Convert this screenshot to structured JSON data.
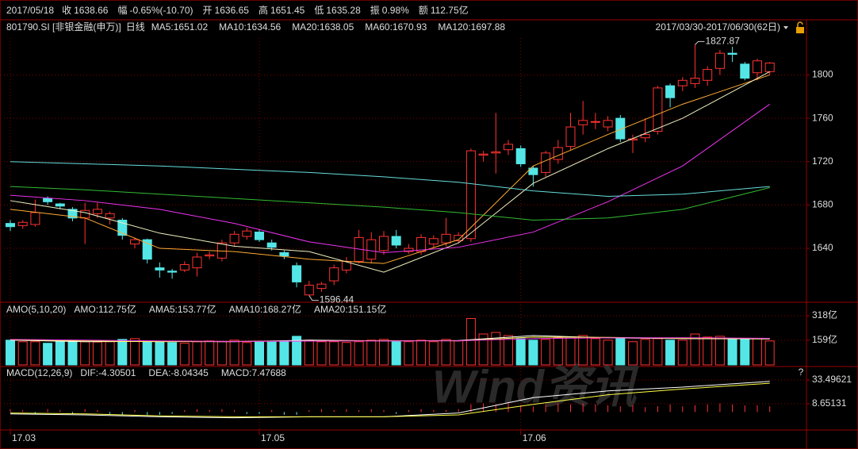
{
  "header": {
    "date": "2017/05/18",
    "items": [
      {
        "label": "收",
        "value": "1638.66",
        "color": "#00e000"
      },
      {
        "label": "幅",
        "value": "-0.65%(-10.70)",
        "color": "#00e000"
      },
      {
        "label": "开",
        "value": "1636.65",
        "color": "#dddddd"
      },
      {
        "label": "高",
        "value": "1651.45",
        "color": "#ff3232"
      },
      {
        "label": "低",
        "value": "1635.28",
        "color": "#00e000"
      },
      {
        "label": "振",
        "value": "0.98%",
        "color": "#dddddd"
      },
      {
        "label": "额",
        "value": "112.75亿",
        "color": "#dddddd"
      }
    ],
    "help": "?",
    "watermark": "Wind资讯"
  },
  "chart_data": [
    {
      "type": "candlestick",
      "title": "801790.SI [非银金融(申万)]",
      "period": "日线",
      "range": "2017/03/30-2017/06/30(62日)",
      "up_color": "#ff3232",
      "down_color": "#54e6e6",
      "open": [
        1663,
        1661,
        1662,
        1686,
        1681,
        1676,
        1668,
        1672,
        1668,
        1666,
        1644,
        1648,
        1622,
        1619,
        1620,
        1622,
        1633,
        1631,
        1645,
        1651,
        1655,
        1645,
        1636,
        1624,
        1597,
        1603,
        1610,
        1620,
        1628,
        1630,
        1638,
        1651,
        1637,
        1637,
        1644,
        1645,
        1647,
        1649,
        1726,
        1728,
        1731,
        1732,
        1714,
        1710,
        1722,
        1734,
        1754,
        1757,
        1752,
        1760,
        1740,
        1742,
        1748,
        1790,
        1790,
        1792,
        1795,
        1806,
        1820,
        1810,
        1802,
        1803
      ],
      "close": [
        1660,
        1664,
        1673,
        1683,
        1679,
        1668,
        1675,
        1676,
        1672,
        1652,
        1648,
        1630,
        1620,
        1618,
        1625,
        1632,
        1634,
        1645,
        1653,
        1656,
        1648,
        1641,
        1633,
        1609,
        1606,
        1607,
        1622,
        1628,
        1650,
        1648,
        1651,
        1643,
        1640,
        1650,
        1649,
        1653,
        1652,
        1730,
        1727,
        1729,
        1736,
        1718,
        1708,
        1728,
        1733,
        1752,
        1758,
        1757,
        1758,
        1741,
        1741,
        1745,
        1788,
        1779,
        1795,
        1797,
        1805,
        1820,
        1819,
        1797,
        1813,
        1811
      ],
      "high": [
        1666,
        1666,
        1685,
        1688,
        1682,
        1678,
        1682,
        1682,
        1674,
        1668,
        1650,
        1649,
        1627,
        1621,
        1628,
        1636,
        1637,
        1648,
        1656,
        1659,
        1657,
        1648,
        1638,
        1627,
        1610,
        1609,
        1625,
        1632,
        1657,
        1655,
        1656,
        1657,
        1644,
        1653,
        1652,
        1668,
        1655,
        1732,
        1730,
        1765,
        1740,
        1735,
        1716,
        1730,
        1740,
        1765,
        1776,
        1765,
        1762,
        1763,
        1745,
        1760,
        1790,
        1792,
        1798,
        1827.87,
        1808,
        1823,
        1826,
        1812,
        1815,
        1812
      ],
      "low": [
        1656,
        1658,
        1660,
        1680,
        1676,
        1665,
        1644,
        1668,
        1662,
        1648,
        1640,
        1626,
        1613,
        1612,
        1618,
        1614,
        1630,
        1628,
        1642,
        1648,
        1646,
        1638,
        1630,
        1604,
        1596.44,
        1600,
        1606,
        1617,
        1626,
        1626,
        1634,
        1640,
        1635,
        1634,
        1640,
        1642,
        1645,
        1646,
        1720,
        1709,
        1726,
        1715,
        1697,
        1706,
        1718,
        1730,
        1745,
        1750,
        1748,
        1738,
        1728,
        1738,
        1745,
        1770,
        1785,
        1788,
        1790,
        1800,
        1812,
        1795,
        1795,
        1800
      ],
      "series": [
        {
          "name": "MA5:1651.02",
          "color": "#ffaa33",
          "x": [
            0,
            6,
            12,
            18,
            24,
            30,
            36,
            42,
            48,
            54,
            61
          ],
          "values": [
            1676,
            1668,
            1640,
            1637,
            1630,
            1626,
            1648,
            1716,
            1745,
            1773,
            1800
          ]
        },
        {
          "name": "MA10:1634.56",
          "color": "#f0f0c0",
          "x": [
            0,
            6,
            12,
            18,
            24,
            30,
            36,
            42,
            48,
            54,
            61
          ],
          "values": [
            1684,
            1673,
            1654,
            1642,
            1637,
            1618,
            1645,
            1700,
            1732,
            1760,
            1803
          ]
        },
        {
          "name": "MA20:1638.05",
          "color": "#ee33ee",
          "x": [
            0,
            6,
            12,
            18,
            24,
            30,
            36,
            42,
            48,
            54,
            61
          ],
          "values": [
            1689,
            1684,
            1676,
            1663,
            1646,
            1636,
            1641,
            1655,
            1683,
            1716,
            1773
          ]
        },
        {
          "name": "MA60:1670.93",
          "color": "#33bb33",
          "x": [
            0,
            6,
            12,
            18,
            24,
            30,
            36,
            42,
            48,
            54,
            61
          ],
          "values": [
            1697,
            1694,
            1690,
            1686,
            1682,
            1678,
            1673,
            1666,
            1668,
            1676,
            1696
          ]
        },
        {
          "name": "MA120:1697.88",
          "color": "#66dddd",
          "x": [
            0,
            6,
            12,
            18,
            24,
            30,
            36,
            42,
            48,
            54,
            61
          ],
          "values": [
            1720,
            1718,
            1716,
            1713,
            1710,
            1706,
            1701,
            1693,
            1688,
            1690,
            1697
          ]
        }
      ],
      "annotations": [
        {
          "index": 55,
          "value": 1827.87,
          "color": "#ff3232"
        },
        {
          "index": 24,
          "value": 1596.44,
          "color": "#33dd33"
        }
      ],
      "ylim": [
        1591,
        1834
      ],
      "yticks": [
        1640,
        1680,
        1720,
        1760,
        1800
      ],
      "x_labels": [
        {
          "index": 0,
          "label": "17.03"
        },
        {
          "index": 20,
          "label": "17.05"
        },
        {
          "index": 41,
          "label": "17.06"
        }
      ]
    },
    {
      "type": "bar",
      "title": "AMO(5,10,20)",
      "series": [
        {
          "name": "AMO:112.75亿",
          "color": "#dddddd",
          "values": [
            160,
            150,
            150,
            140,
            150,
            155,
            150,
            148,
            150,
            165,
            170,
            150,
            150,
            145,
            140,
            150,
            155,
            150,
            160,
            145,
            150,
            148,
            150,
            185,
            160,
            150,
            150,
            145,
            150,
            160,
            165,
            150,
            150,
            160,
            150,
            165,
            155,
            300,
            200,
            210,
            190,
            170,
            160,
            165,
            175,
            180,
            190,
            170,
            160,
            170,
            150,
            165,
            170,
            160,
            160,
            200,
            180,
            185,
            170,
            165,
            170,
            155
          ]
        },
        {
          "name": "AMA5:153.77亿",
          "color": "#ffffff",
          "x": [
            0,
            6,
            12,
            18,
            24,
            30,
            36,
            42,
            48,
            54,
            61
          ],
          "values": [
            160,
            150,
            152,
            150,
            160,
            155,
            158,
            190,
            175,
            170,
            168
          ]
        },
        {
          "name": "AMA10:168.27亿",
          "color": "#ffff44",
          "x": [
            0,
            6,
            12,
            18,
            24,
            30,
            36,
            42,
            48,
            54,
            61
          ],
          "values": [
            162,
            155,
            150,
            152,
            155,
            157,
            156,
            180,
            178,
            172,
            170
          ]
        },
        {
          "name": "AMA20:151.15亿",
          "color": "#ee33ee",
          "x": [
            0,
            6,
            12,
            18,
            24,
            30,
            36,
            42,
            48,
            54,
            61
          ],
          "values": [
            165,
            160,
            155,
            152,
            154,
            155,
            156,
            170,
            175,
            176,
            172
          ]
        }
      ],
      "ylim": [
        0,
        395
      ],
      "yticks": [
        {
          "value": 318,
          "label": "318亿"
        },
        {
          "value": 159,
          "label": "159亿"
        }
      ]
    },
    {
      "type": "macd",
      "title": "MACD(12,26,9)",
      "series": [
        {
          "name": "DIF:-4.30501",
          "color": "#ffffff",
          "x": [
            0,
            6,
            12,
            18,
            24,
            30,
            36,
            42,
            48,
            54,
            61
          ],
          "values": [
            -2,
            -3,
            -5,
            -6,
            -5,
            -5,
            -1,
            15,
            22,
            26,
            32
          ]
        },
        {
          "name": "DEA:-8.04345",
          "color": "#ffff44",
          "x": [
            0,
            6,
            12,
            18,
            24,
            30,
            36,
            42,
            48,
            54,
            61
          ],
          "values": [
            -1,
            -2,
            -4,
            -5,
            -5,
            -5,
            -3,
            8,
            18,
            24,
            30
          ]
        },
        {
          "name": "MACD:7.47688",
          "color": "#ee33ee",
          "values": [
            3,
            2,
            -2,
            3,
            2,
            -2,
            3,
            2,
            -2,
            -3,
            2,
            -3,
            -3,
            -2,
            2,
            3,
            2,
            3,
            2,
            -2,
            -2,
            2,
            -3,
            -3,
            2,
            3,
            2,
            3,
            2,
            3,
            2,
            -2,
            2,
            3,
            2,
            2,
            3,
            8,
            9,
            8,
            9,
            7,
            6,
            8,
            9,
            8,
            9,
            8,
            7,
            6,
            7,
            5,
            6,
            8,
            6,
            7,
            8,
            9,
            8,
            7,
            7,
            6
          ]
        }
      ],
      "ylim": [
        -17.1,
        46.7
      ],
      "yticks": [
        33.49621,
        8.65131
      ]
    }
  ]
}
